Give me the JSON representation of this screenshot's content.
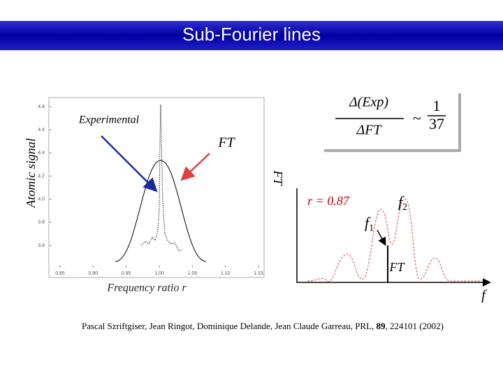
{
  "title": "Sub-Fourier lines",
  "left_plot": {
    "y_label": "Atomic signal",
    "x_label": "Frequency ratio r",
    "yticks": [
      "4.8",
      "4.6",
      "4.4",
      "4.2",
      "4.0",
      "3.8",
      "3.6"
    ],
    "xticks": [
      "0.85",
      "0.90",
      "0.95",
      "1.00",
      "1.05",
      "1.10",
      "1.15"
    ],
    "experimental_label": "Experimental",
    "ft_label": "FT",
    "right_axis_label": "FT"
  },
  "formula": {
    "numerator": "Δ(Exp)",
    "denominator": "ΔFT",
    "relation": "~",
    "ratio_numerator": "1",
    "ratio_denominator": "37"
  },
  "right_plot": {
    "r_label": "r = 0.87",
    "peak2": "f",
    "peak2_sub": "2",
    "peak1": "f",
    "peak1_sub": "1",
    "ft_label": "FT",
    "x_label": "f"
  },
  "citation": {
    "authors": "Pascal Szriftgiser, Jean Ringot, Dominique Delande, Jean Claude Garreau, PRL, ",
    "volume": "89",
    "rest": ", 224101 (2002)"
  }
}
